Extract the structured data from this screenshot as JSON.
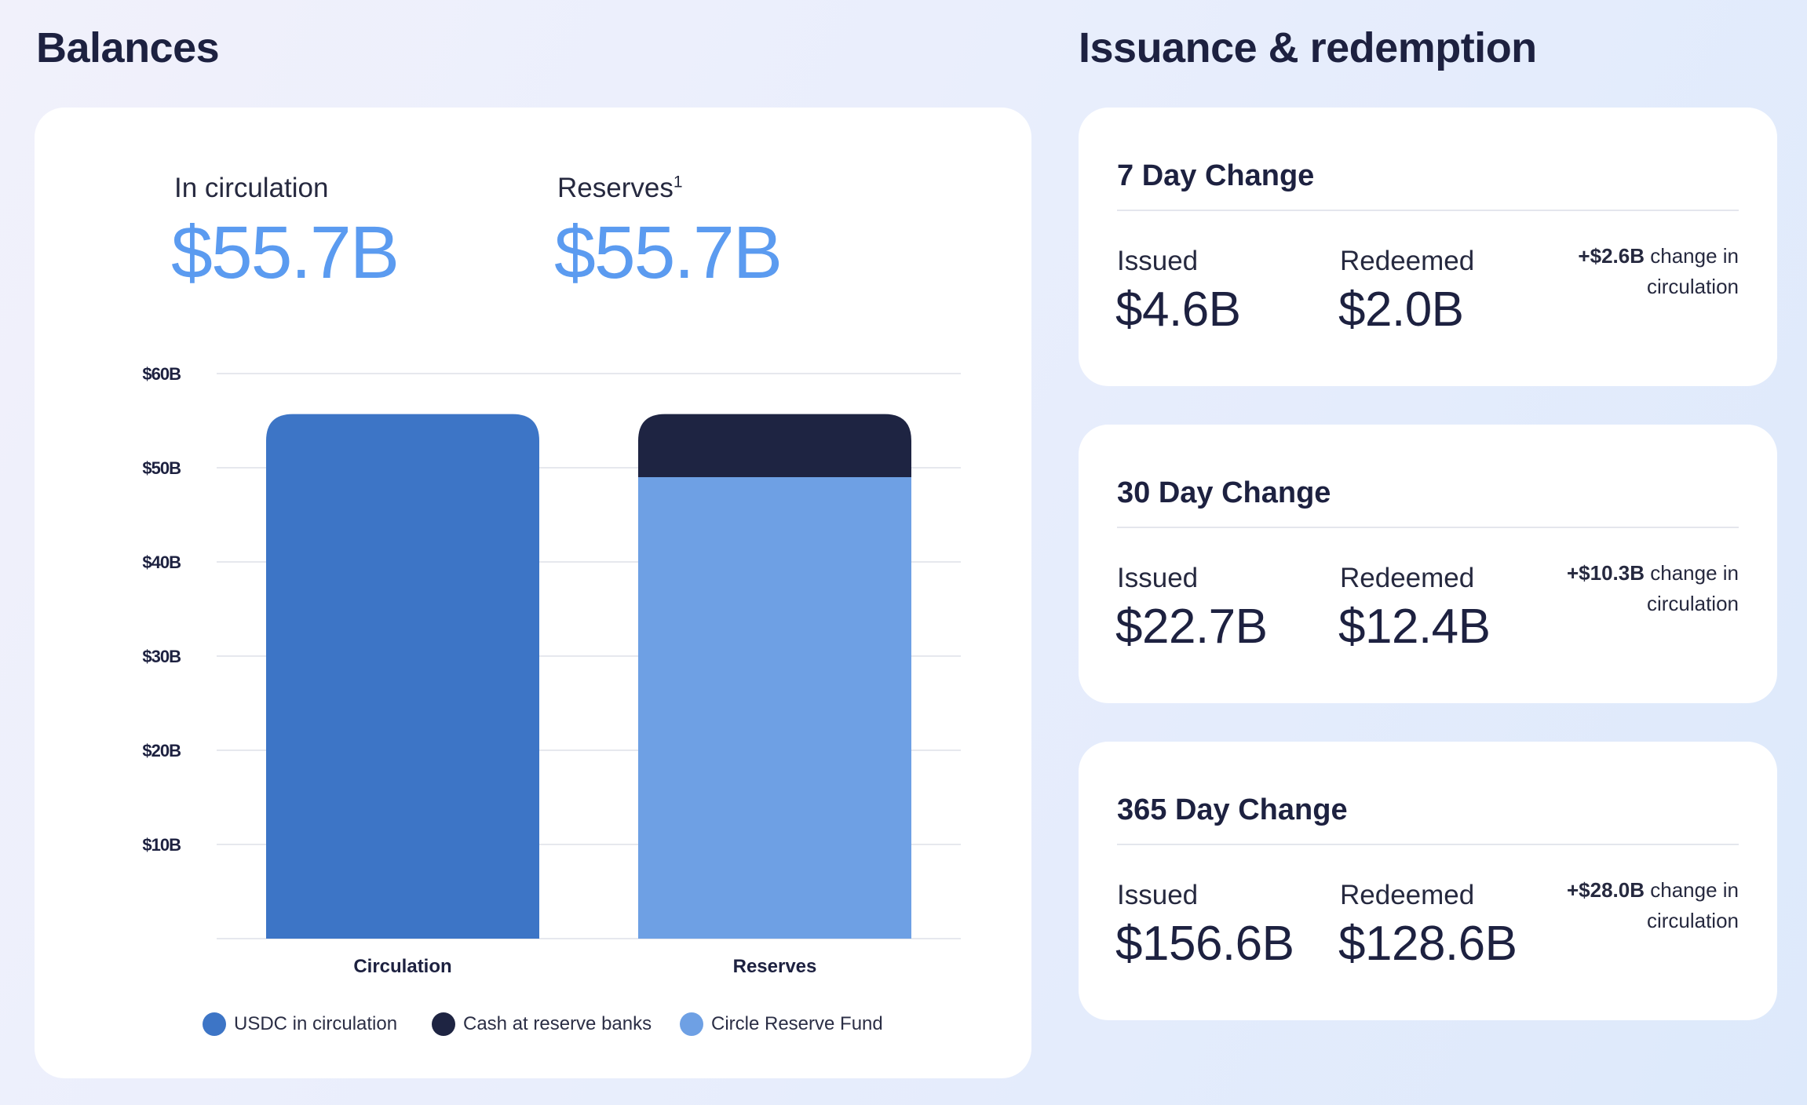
{
  "balances": {
    "title": "Balances",
    "circulation_label": "In circulation",
    "circulation_value": "$55.7B",
    "reserves_label": "Reserves",
    "reserves_footnote": "1",
    "reserves_value": "$55.7B"
  },
  "chart_data": {
    "type": "bar",
    "stacked": true,
    "categories": [
      "Circulation",
      "Reserves"
    ],
    "series": [
      {
        "name": "USDC in circulation",
        "color": "#3d75c6",
        "values": [
          55.7,
          0
        ]
      },
      {
        "name": "Circle Reserve Fund",
        "color": "#6ea0e4",
        "values": [
          0,
          49.0
        ]
      },
      {
        "name": "Cash at reserve banks",
        "color": "#1e2442",
        "values": [
          0,
          6.7
        ]
      }
    ],
    "y_ticks": [
      {
        "value": 10,
        "label": "$10B"
      },
      {
        "value": 20,
        "label": "$20B"
      },
      {
        "value": 30,
        "label": "$30B"
      },
      {
        "value": 40,
        "label": "$40B"
      },
      {
        "value": 50,
        "label": "$50B"
      },
      {
        "value": 60,
        "label": "$60B"
      }
    ],
    "ylim": [
      0,
      60
    ],
    "grid": true,
    "legend_position": "bottom",
    "legend": [
      {
        "label": "USDC in circulation",
        "color": "#3d75c6"
      },
      {
        "label": "Cash at reserve banks",
        "color": "#1e2442"
      },
      {
        "label": "Circle Reserve Fund",
        "color": "#6ea0e4"
      }
    ]
  },
  "issuance": {
    "title": "Issuance & redemption",
    "issued_label": "Issued",
    "redeemed_label": "Redeemed",
    "change_suffix": "change in circulation",
    "cards": [
      {
        "title": "7 Day Change",
        "issued": "$4.6B",
        "redeemed": "$2.0B",
        "change": "+$2.6B"
      },
      {
        "title": "30 Day Change",
        "issued": "$22.7B",
        "redeemed": "$12.4B",
        "change": "+$10.3B"
      },
      {
        "title": "365 Day Change",
        "issued": "$156.6B",
        "redeemed": "$128.6B",
        "change": "+$28.0B"
      }
    ]
  }
}
